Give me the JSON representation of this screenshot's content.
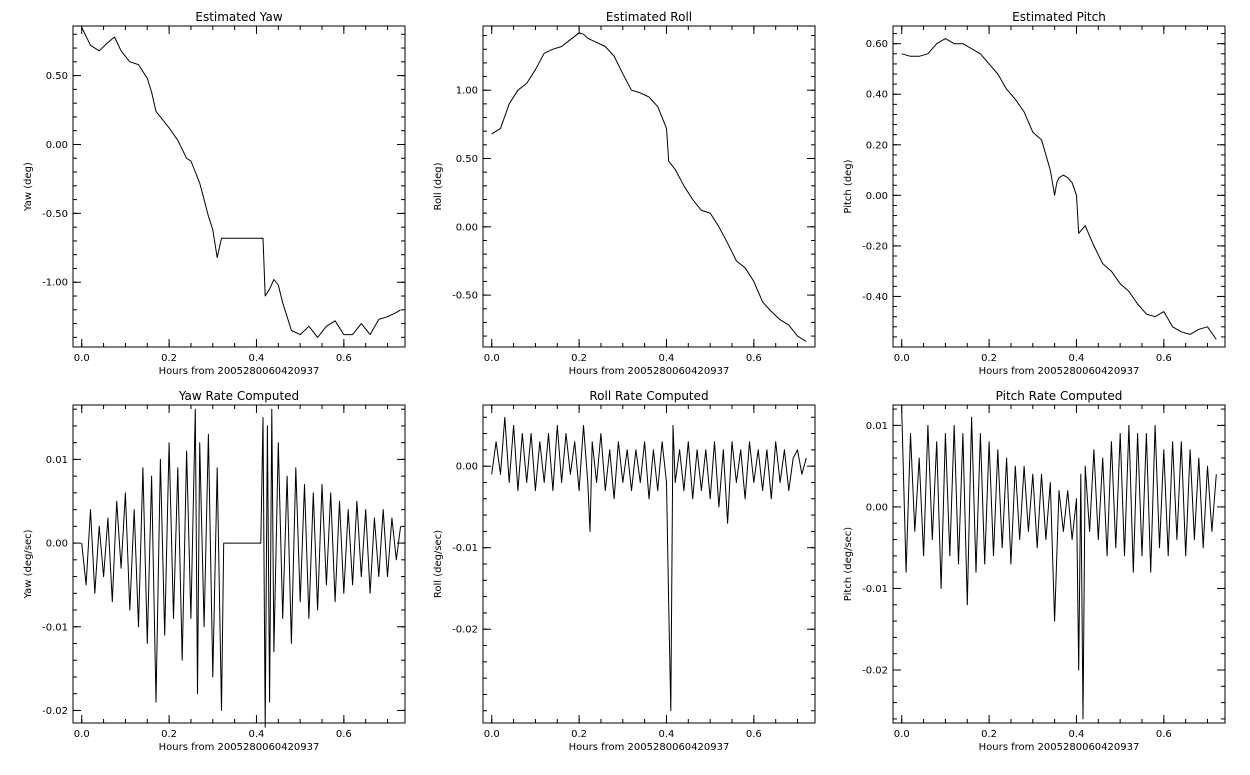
{
  "chart_data": [
    {
      "id": "yaw",
      "type": "line",
      "title": "Estimated Yaw",
      "xlabel": "Hours from 2005280060420937",
      "ylabel": "Yaw (deg)",
      "xlim": [
        -0.02,
        0.74
      ],
      "ylim": [
        -1.47,
        0.86
      ],
      "xticks": [
        0.0,
        0.2,
        0.4,
        0.6
      ],
      "xtick_labels": [
        "0.0",
        "0.2",
        "0.4",
        "0.6"
      ],
      "yticks": [
        0.5,
        0.0,
        -0.5,
        -1.0
      ],
      "ytick_labels": [
        "0.50",
        "0.00",
        "-0.50",
        "-1.00"
      ],
      "x": [
        0.0,
        0.02,
        0.04,
        0.06,
        0.075,
        0.09,
        0.11,
        0.13,
        0.15,
        0.16,
        0.17,
        0.18,
        0.2,
        0.22,
        0.24,
        0.25,
        0.26,
        0.27,
        0.28,
        0.29,
        0.3,
        0.31,
        0.32,
        0.325,
        0.415,
        0.42,
        0.43,
        0.44,
        0.45,
        0.46,
        0.47,
        0.48,
        0.5,
        0.52,
        0.54,
        0.56,
        0.58,
        0.6,
        0.62,
        0.64,
        0.66,
        0.68,
        0.7,
        0.72,
        0.73
      ],
      "y": [
        0.85,
        0.72,
        0.68,
        0.74,
        0.78,
        0.68,
        0.6,
        0.58,
        0.48,
        0.38,
        0.24,
        0.2,
        0.12,
        0.03,
        -0.1,
        -0.12,
        -0.2,
        -0.28,
        -0.4,
        -0.52,
        -0.62,
        -0.82,
        -0.68,
        -0.68,
        -0.68,
        -1.1,
        -1.05,
        -0.98,
        -1.02,
        -1.15,
        -1.25,
        -1.35,
        -1.38,
        -1.32,
        -1.4,
        -1.32,
        -1.28,
        -1.38,
        -1.38,
        -1.3,
        -1.38,
        -1.27,
        -1.25,
        -1.22,
        -1.2
      ]
    },
    {
      "id": "roll",
      "type": "line",
      "title": "Estimated Roll",
      "xlabel": "Hours from 2005280060420937",
      "ylabel": "Roll (deg)",
      "xlim": [
        -0.02,
        0.74
      ],
      "ylim": [
        -0.88,
        1.47
      ],
      "xticks": [
        0.0,
        0.2,
        0.4,
        0.6
      ],
      "xtick_labels": [
        "0.0",
        "0.2",
        "0.4",
        "0.6"
      ],
      "yticks": [
        1.0,
        0.5,
        0.0,
        -0.5
      ],
      "ytick_labels": [
        "1.00",
        "0.50",
        "0.00",
        "-0.50"
      ],
      "x": [
        0.0,
        0.02,
        0.04,
        0.06,
        0.08,
        0.1,
        0.12,
        0.14,
        0.16,
        0.18,
        0.2,
        0.21,
        0.22,
        0.24,
        0.26,
        0.28,
        0.3,
        0.32,
        0.34,
        0.36,
        0.38,
        0.4,
        0.405,
        0.42,
        0.44,
        0.46,
        0.48,
        0.5,
        0.52,
        0.54,
        0.56,
        0.58,
        0.6,
        0.62,
        0.64,
        0.66,
        0.68,
        0.7,
        0.72
      ],
      "y": [
        0.68,
        0.72,
        0.9,
        1.0,
        1.05,
        1.15,
        1.27,
        1.3,
        1.32,
        1.37,
        1.42,
        1.41,
        1.38,
        1.35,
        1.32,
        1.25,
        1.12,
        1.0,
        0.98,
        0.95,
        0.88,
        0.72,
        0.48,
        0.42,
        0.3,
        0.2,
        0.12,
        0.1,
        0.0,
        -0.12,
        -0.25,
        -0.3,
        -0.4,
        -0.55,
        -0.62,
        -0.68,
        -0.72,
        -0.8,
        -0.84
      ]
    },
    {
      "id": "pitch",
      "type": "line",
      "title": "Estimated Pitch",
      "xlabel": "Hours from 2005280060420937",
      "ylabel": "Pitch (deg)",
      "xlim": [
        -0.02,
        0.74
      ],
      "ylim": [
        -0.6,
        0.67
      ],
      "xticks": [
        0.0,
        0.2,
        0.4,
        0.6
      ],
      "xtick_labels": [
        "0.0",
        "0.2",
        "0.4",
        "0.6"
      ],
      "yticks": [
        0.6,
        0.4,
        0.2,
        0.0,
        -0.2,
        -0.4
      ],
      "ytick_labels": [
        "0.60",
        "0.40",
        "0.20",
        "0.00",
        "-0.20",
        "-0.40"
      ],
      "x": [
        0.0,
        0.02,
        0.04,
        0.06,
        0.08,
        0.1,
        0.12,
        0.14,
        0.16,
        0.18,
        0.2,
        0.22,
        0.24,
        0.26,
        0.28,
        0.3,
        0.32,
        0.34,
        0.35,
        0.355,
        0.36,
        0.37,
        0.38,
        0.39,
        0.4,
        0.405,
        0.42,
        0.44,
        0.46,
        0.48,
        0.5,
        0.52,
        0.54,
        0.56,
        0.58,
        0.6,
        0.62,
        0.64,
        0.66,
        0.68,
        0.7,
        0.72
      ],
      "y": [
        0.56,
        0.55,
        0.55,
        0.56,
        0.6,
        0.62,
        0.6,
        0.6,
        0.58,
        0.56,
        0.52,
        0.48,
        0.42,
        0.38,
        0.33,
        0.25,
        0.22,
        0.1,
        0.0,
        0.05,
        0.07,
        0.08,
        0.07,
        0.05,
        0.0,
        -0.15,
        -0.12,
        -0.2,
        -0.27,
        -0.3,
        -0.35,
        -0.38,
        -0.43,
        -0.47,
        -0.48,
        -0.46,
        -0.52,
        -0.54,
        -0.55,
        -0.53,
        -0.52,
        -0.57
      ]
    },
    {
      "id": "yaw-rate",
      "type": "line",
      "title": "Yaw Rate Computed",
      "xlabel": "Hours from 2005280060420937",
      "ylabel": "Yaw (deg/sec)",
      "xlim": [
        -0.02,
        0.74
      ],
      "ylim": [
        -0.0215,
        0.0165
      ],
      "xticks": [
        0.0,
        0.2,
        0.4,
        0.6
      ],
      "xtick_labels": [
        "0.0",
        "0.2",
        "0.4",
        "0.6"
      ],
      "yticks": [
        0.01,
        0.0,
        -0.01,
        -0.02
      ],
      "ytick_labels": [
        "0.01",
        "0.00",
        "-0.01",
        "-0.02"
      ],
      "x": [
        0.0,
        0.01,
        0.02,
        0.03,
        0.04,
        0.05,
        0.06,
        0.07,
        0.08,
        0.09,
        0.1,
        0.11,
        0.12,
        0.13,
        0.14,
        0.15,
        0.16,
        0.17,
        0.18,
        0.19,
        0.2,
        0.21,
        0.22,
        0.23,
        0.24,
        0.25,
        0.26,
        0.265,
        0.27,
        0.28,
        0.29,
        0.3,
        0.31,
        0.32,
        0.325,
        0.41,
        0.415,
        0.42,
        0.425,
        0.43,
        0.435,
        0.44,
        0.45,
        0.46,
        0.47,
        0.48,
        0.49,
        0.5,
        0.51,
        0.52,
        0.53,
        0.54,
        0.55,
        0.56,
        0.57,
        0.58,
        0.59,
        0.6,
        0.61,
        0.62,
        0.63,
        0.64,
        0.65,
        0.66,
        0.67,
        0.68,
        0.69,
        0.7,
        0.71,
        0.72,
        0.73
      ],
      "y": [
        0.0,
        -0.005,
        0.004,
        -0.006,
        0.002,
        -0.004,
        0.003,
        -0.007,
        0.005,
        -0.003,
        0.006,
        -0.008,
        0.004,
        -0.01,
        0.009,
        -0.012,
        0.008,
        -0.019,
        0.01,
        -0.011,
        0.012,
        -0.009,
        0.009,
        -0.014,
        0.011,
        -0.009,
        0.016,
        -0.018,
        0.012,
        -0.01,
        0.013,
        -0.016,
        0.009,
        -0.02,
        0.0,
        0.0,
        0.015,
        -0.022,
        0.014,
        -0.019,
        0.016,
        -0.013,
        0.012,
        -0.009,
        0.008,
        -0.012,
        0.009,
        -0.007,
        0.007,
        -0.009,
        0.006,
        -0.008,
        0.007,
        -0.005,
        0.006,
        -0.007,
        0.005,
        -0.006,
        0.004,
        -0.005,
        0.005,
        -0.004,
        0.004,
        -0.006,
        0.003,
        -0.004,
        0.004,
        -0.004,
        0.003,
        -0.002,
        0.002
      ]
    },
    {
      "id": "roll-rate",
      "type": "line",
      "title": "Roll Rate Computed",
      "xlabel": "Hours from 2005280060420937",
      "ylabel": "Roll (deg/sec)",
      "xlim": [
        -0.02,
        0.74
      ],
      "ylim": [
        -0.0315,
        0.0075
      ],
      "xticks": [
        0.0,
        0.2,
        0.4,
        0.6
      ],
      "xtick_labels": [
        "0.0",
        "0.2",
        "0.4",
        "0.6"
      ],
      "yticks": [
        0.0,
        -0.01,
        -0.02
      ],
      "ytick_labels": [
        "0.00",
        "-0.01",
        "-0.02"
      ],
      "x": [
        0.0,
        0.01,
        0.02,
        0.03,
        0.04,
        0.05,
        0.06,
        0.07,
        0.08,
        0.09,
        0.1,
        0.11,
        0.12,
        0.13,
        0.14,
        0.15,
        0.16,
        0.17,
        0.18,
        0.19,
        0.2,
        0.21,
        0.22,
        0.225,
        0.23,
        0.24,
        0.25,
        0.26,
        0.27,
        0.28,
        0.29,
        0.3,
        0.31,
        0.32,
        0.33,
        0.34,
        0.35,
        0.36,
        0.37,
        0.38,
        0.39,
        0.4,
        0.405,
        0.41,
        0.415,
        0.42,
        0.43,
        0.44,
        0.45,
        0.46,
        0.47,
        0.48,
        0.49,
        0.5,
        0.51,
        0.52,
        0.53,
        0.54,
        0.55,
        0.56,
        0.57,
        0.58,
        0.59,
        0.6,
        0.61,
        0.62,
        0.63,
        0.64,
        0.65,
        0.66,
        0.67,
        0.68,
        0.69,
        0.7,
        0.71,
        0.72
      ],
      "y": [
        -0.001,
        0.003,
        -0.001,
        0.006,
        -0.002,
        0.005,
        -0.003,
        0.004,
        -0.002,
        0.004,
        -0.003,
        0.003,
        -0.002,
        0.004,
        -0.003,
        0.005,
        -0.002,
        0.004,
        -0.001,
        0.003,
        -0.003,
        0.005,
        -0.002,
        -0.008,
        0.003,
        -0.002,
        0.004,
        -0.003,
        0.002,
        -0.004,
        0.003,
        -0.002,
        0.002,
        -0.003,
        0.002,
        -0.002,
        0.003,
        -0.004,
        0.002,
        -0.003,
        0.003,
        -0.002,
        -0.017,
        -0.03,
        0.005,
        -0.002,
        0.002,
        -0.003,
        0.003,
        -0.004,
        0.002,
        -0.003,
        0.002,
        -0.004,
        0.003,
        -0.005,
        0.002,
        -0.007,
        0.003,
        -0.002,
        0.002,
        -0.004,
        0.003,
        -0.002,
        0.002,
        -0.003,
        0.002,
        -0.004,
        0.003,
        -0.002,
        0.002,
        -0.003,
        0.001,
        0.002,
        -0.001,
        0.001
      ]
    },
    {
      "id": "pitch-rate",
      "type": "line",
      "title": "Pitch Rate Computed",
      "xlabel": "Hours from 2005280060420937",
      "ylabel": "Pitch (deg/sec)",
      "xlim": [
        -0.02,
        0.74
      ],
      "ylim": [
        -0.0265,
        0.0125
      ],
      "xticks": [
        0.0,
        0.2,
        0.4,
        0.6
      ],
      "xtick_labels": [
        "0.0",
        "0.2",
        "0.4",
        "0.6"
      ],
      "yticks": [
        0.01,
        0.0,
        -0.01,
        -0.02
      ],
      "ytick_labels": [
        "0.01",
        "0.00",
        "-0.01",
        "-0.02"
      ],
      "x": [
        0.0,
        0.01,
        0.02,
        0.03,
        0.04,
        0.05,
        0.06,
        0.07,
        0.08,
        0.09,
        0.1,
        0.11,
        0.12,
        0.13,
        0.14,
        0.15,
        0.16,
        0.17,
        0.18,
        0.19,
        0.2,
        0.21,
        0.22,
        0.23,
        0.24,
        0.25,
        0.26,
        0.27,
        0.28,
        0.29,
        0.3,
        0.31,
        0.32,
        0.33,
        0.34,
        0.35,
        0.36,
        0.37,
        0.38,
        0.39,
        0.4,
        0.405,
        0.41,
        0.415,
        0.42,
        0.43,
        0.44,
        0.45,
        0.46,
        0.47,
        0.48,
        0.49,
        0.5,
        0.51,
        0.52,
        0.53,
        0.54,
        0.55,
        0.56,
        0.57,
        0.58,
        0.59,
        0.6,
        0.61,
        0.62,
        0.63,
        0.64,
        0.65,
        0.66,
        0.67,
        0.68,
        0.69,
        0.7,
        0.71,
        0.72
      ],
      "y": [
        0.012,
        -0.008,
        0.009,
        -0.003,
        0.006,
        -0.006,
        0.01,
        -0.004,
        0.008,
        -0.01,
        0.009,
        -0.006,
        0.01,
        -0.007,
        0.009,
        -0.012,
        0.011,
        -0.008,
        0.009,
        -0.007,
        0.008,
        -0.006,
        0.007,
        -0.005,
        0.006,
        -0.007,
        0.005,
        -0.004,
        0.005,
        -0.003,
        0.004,
        -0.005,
        0.004,
        -0.004,
        0.003,
        -0.014,
        0.002,
        -0.003,
        0.002,
        -0.004,
        0.001,
        -0.02,
        0.004,
        -0.026,
        0.005,
        -0.003,
        0.007,
        -0.004,
        0.006,
        -0.006,
        0.008,
        -0.005,
        0.009,
        -0.006,
        0.01,
        -0.008,
        0.009,
        -0.006,
        0.009,
        -0.008,
        0.01,
        -0.005,
        0.007,
        -0.006,
        0.008,
        -0.004,
        0.008,
        -0.006,
        0.007,
        -0.004,
        0.006,
        -0.005,
        0.005,
        -0.003,
        0.004
      ]
    }
  ]
}
